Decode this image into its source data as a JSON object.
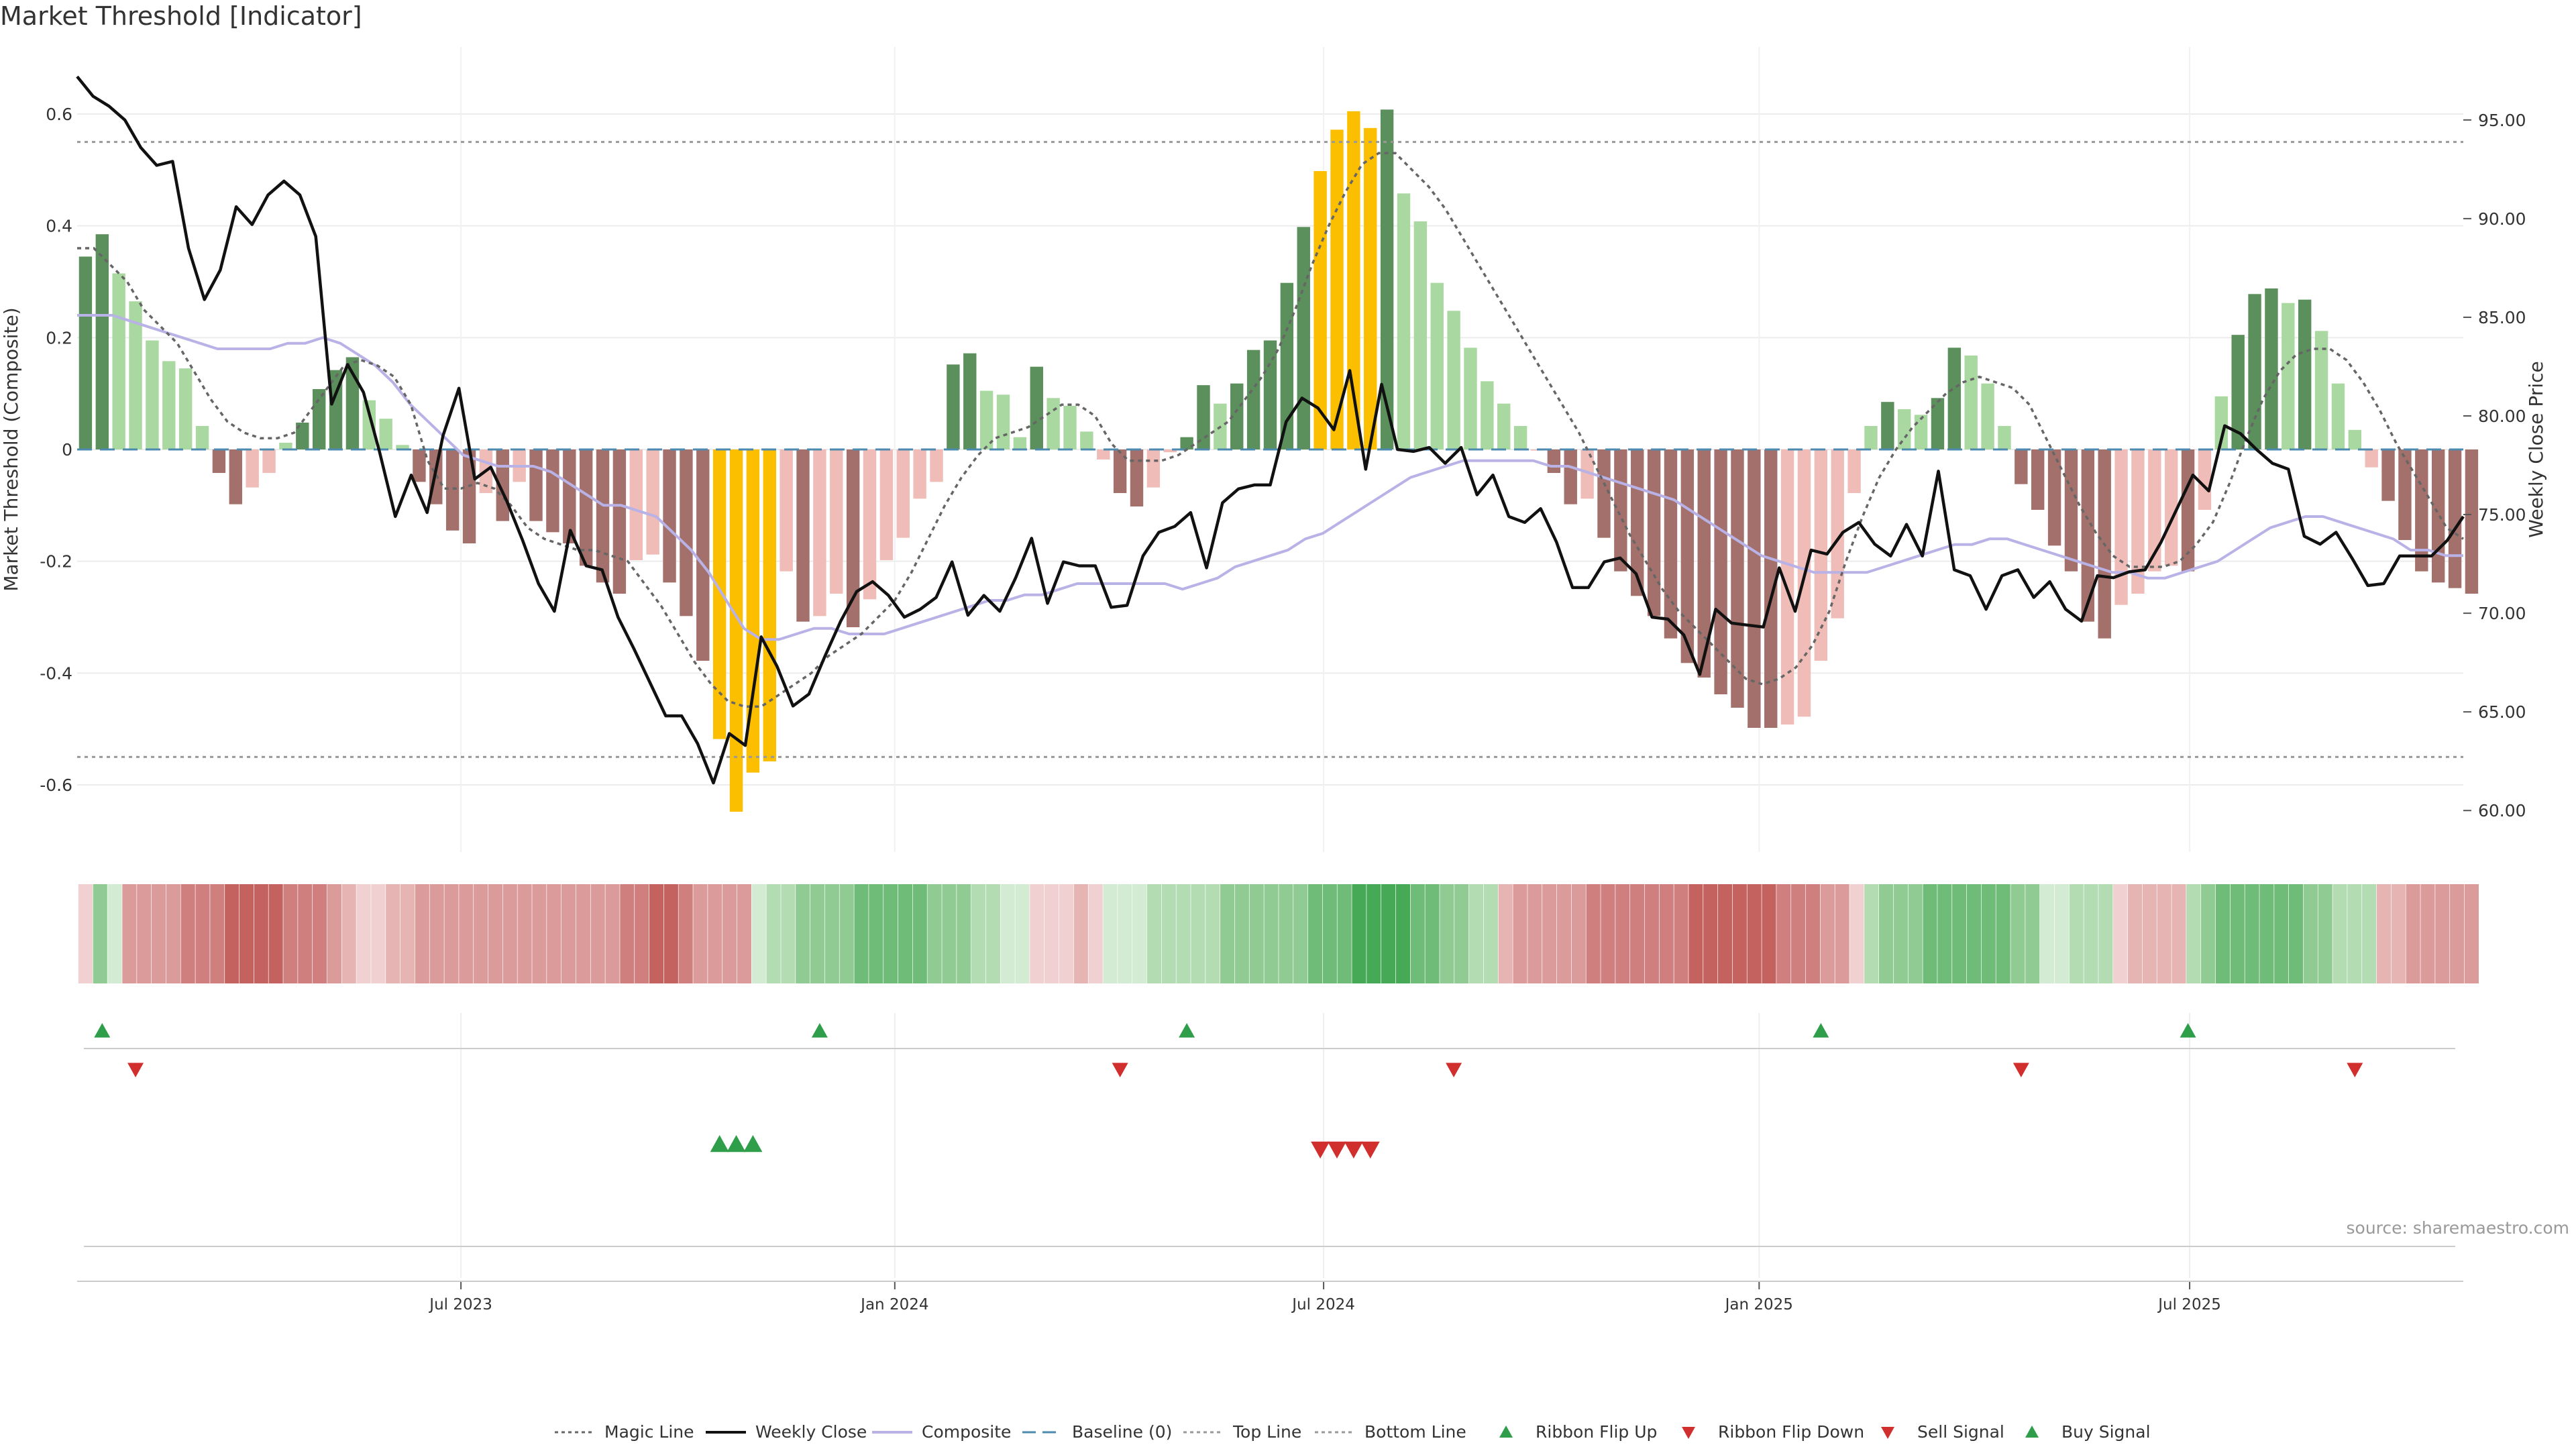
{
  "title": "Market Threshold [Indicator]",
  "source_note": "source: sharemaestro.com",
  "colors": {
    "strong_green": "#5b8f5b",
    "light_green": "#a9d8a0",
    "strong_red": "#a4706b",
    "light_red": "#efbcb7",
    "extreme": "#fbbf00",
    "magic_line": "#666666",
    "weekly_close": "#111111",
    "composite": "#b8b2e6",
    "baseline": "#4d8ab0",
    "threshold_lines": "#999999",
    "flip_up": "#2e9e4a",
    "flip_down": "#d12e2e"
  },
  "legend": [
    {
      "key": "magic",
      "label": "Magic Line"
    },
    {
      "key": "close",
      "label": "Weekly Close"
    },
    {
      "key": "composite",
      "label": "Composite"
    },
    {
      "key": "baseline",
      "label": "Baseline (0)"
    },
    {
      "key": "top",
      "label": "Top Line"
    },
    {
      "key": "bottom",
      "label": "Bottom Line"
    },
    {
      "key": "flipup",
      "label": "Ribbon Flip Up"
    },
    {
      "key": "flipdown",
      "label": "Ribbon Flip Down"
    },
    {
      "key": "sell",
      "label": "Sell Signal"
    },
    {
      "key": "buy",
      "label": "Buy Signal"
    }
  ],
  "chart_data": {
    "type": "bar",
    "y_left": {
      "label": "Market Threshold (Composite)",
      "ylim": [
        -0.72,
        0.72
      ],
      "ticks": [
        "0.6",
        "0.4",
        "0.2",
        "0",
        "-0.2",
        "-0.4",
        "-0.6"
      ],
      "tick_values": [
        0.6,
        0.4,
        0.2,
        0,
        -0.2,
        -0.4,
        -0.6
      ]
    },
    "y_right": {
      "label": "Weekly Close Price",
      "ylim": [
        57.9,
        98.7
      ],
      "ticks": [
        "95.00",
        "90.00",
        "85.00",
        "80.00",
        "75.00",
        "70.00",
        "65.00",
        "60.00"
      ],
      "tick_values": [
        95,
        90,
        85,
        80,
        75,
        70,
        65,
        60
      ]
    },
    "x_ticks": [
      {
        "label": "Jul 2023",
        "week": 22.5
      },
      {
        "label": "Jan 2024",
        "week": 48.5
      },
      {
        "label": "Jul 2024",
        "week": 74.2
      },
      {
        "label": "Jan 2025",
        "week": 100.3
      },
      {
        "label": "Jul 2025",
        "week": 126.1
      }
    ],
    "x_range": [
      -0.5,
      142.5
    ],
    "top_line": 0.55,
    "bottom_line": -0.55,
    "baseline": 0,
    "composite_bars": [
      0.345,
      0.385,
      0.315,
      0.265,
      0.195,
      0.158,
      0.145,
      0.042,
      -0.042,
      -0.098,
      -0.068,
      -0.042,
      0.012,
      0.048,
      0.108,
      0.142,
      0.165,
      0.088,
      0.055,
      0.008,
      -0.058,
      -0.098,
      -0.145,
      -0.168,
      -0.078,
      -0.128,
      -0.058,
      -0.128,
      -0.148,
      -0.168,
      -0.208,
      -0.238,
      -0.258,
      -0.198,
      -0.188,
      -0.238,
      -0.298,
      -0.378,
      -0.518,
      -0.648,
      -0.578,
      -0.558,
      -0.218,
      -0.308,
      -0.298,
      -0.258,
      -0.318,
      -0.268,
      -0.198,
      -0.158,
      -0.088,
      -0.058,
      0.152,
      0.172,
      0.105,
      0.098,
      0.022,
      0.148,
      0.092,
      0.078,
      0.032,
      -0.018,
      -0.078,
      -0.102,
      -0.068,
      -0.005,
      0.022,
      0.115,
      0.082,
      0.118,
      0.178,
      0.195,
      0.298,
      0.398,
      0.498,
      0.572,
      0.605,
      0.575,
      0.608,
      0.458,
      0.408,
      0.298,
      0.248,
      0.182,
      0.122,
      0.082,
      0.042,
      -0.002,
      -0.042,
      -0.098,
      -0.088,
      -0.158,
      -0.218,
      -0.262,
      -0.298,
      -0.338,
      -0.382,
      -0.408,
      -0.438,
      -0.462,
      -0.498,
      -0.498,
      -0.492,
      -0.478,
      -0.378,
      -0.302,
      -0.078,
      0.042,
      0.085,
      0.072,
      0.062,
      0.092,
      0.182,
      0.168,
      0.118,
      0.042,
      -0.062,
      -0.108,
      -0.172,
      -0.218,
      -0.308,
      -0.338,
      -0.278,
      -0.258,
      -0.218,
      -0.208,
      -0.218,
      -0.108,
      0.095,
      0.205,
      0.278,
      0.288,
      0.262,
      0.268,
      0.212,
      0.118,
      0.035,
      -0.032,
      -0.092,
      -0.162,
      -0.218,
      -0.238,
      -0.248,
      -0.258
    ],
    "extreme_weeks": [
      38,
      39,
      40,
      41,
      74,
      75,
      76,
      77
    ],
    "weekly_close": [
      97.2,
      96.2,
      95.7,
      95.0,
      93.6,
      92.7,
      92.9,
      88.5,
      85.9,
      87.4,
      90.6,
      89.7,
      91.2,
      91.9,
      91.2,
      89.1,
      80.6,
      82.6,
      81.2,
      78.2,
      74.9,
      77.0,
      75.1,
      79.0,
      81.4,
      76.8,
      77.4,
      75.7,
      73.7,
      71.5,
      70.1,
      74.2,
      72.4,
      72.2,
      69.8,
      68.2,
      66.5,
      64.8,
      64.8,
      63.4,
      61.4,
      63.9,
      63.3,
      68.8,
      67.3,
      65.3,
      65.9,
      67.8,
      69.6,
      71.1,
      71.6,
      70.9,
      69.8,
      70.2,
      70.8,
      72.6,
      69.9,
      70.9,
      70.1,
      71.8,
      73.8,
      70.5,
      72.6,
      72.4,
      72.4,
      70.3,
      70.4,
      72.9,
      74.1,
      74.4,
      75.1,
      72.3,
      75.6,
      76.3,
      76.5,
      76.5,
      79.7,
      80.9,
      80.4,
      79.3,
      82.3,
      77.3,
      81.6,
      78.3,
      78.2,
      78.4,
      77.6,
      78.4,
      76.0,
      77.0,
      74.9,
      74.6,
      75.3,
      73.6,
      71.3,
      71.3,
      72.6,
      72.8,
      72.0,
      69.8,
      69.7,
      68.9,
      66.9,
      70.2,
      69.5,
      69.4,
      69.3,
      72.3,
      70.1,
      73.2,
      73.0,
      74.1,
      74.6,
      73.5,
      72.9,
      74.5,
      72.9,
      77.2,
      72.2,
      71.9,
      70.2,
      71.9,
      72.2,
      70.8,
      71.6,
      70.2,
      69.6,
      71.9,
      71.8,
      72.1,
      72.2,
      73.6,
      75.3,
      77.0,
      76.2,
      79.5,
      79.1,
      78.3,
      77.6,
      77.3,
      73.9,
      73.5,
      74.1,
      72.8,
      71.4,
      71.5,
      72.9,
      72.9,
      72.9,
      73.7,
      74.9
    ],
    "magic_line": [
      0.36,
      0.36,
      0.33,
      0.3,
      0.25,
      0.22,
      0.19,
      0.14,
      0.09,
      0.05,
      0.03,
      0.02,
      0.02,
      0.03,
      0.07,
      0.11,
      0.15,
      0.16,
      0.15,
      0.13,
      0.08,
      -0.02,
      -0.07,
      -0.07,
      -0.06,
      -0.07,
      -0.1,
      -0.14,
      -0.16,
      -0.17,
      -0.18,
      -0.18,
      -0.19,
      -0.2,
      -0.24,
      -0.28,
      -0.33,
      -0.38,
      -0.42,
      -0.45,
      -0.46,
      -0.46,
      -0.44,
      -0.42,
      -0.4,
      -0.37,
      -0.35,
      -0.33,
      -0.3,
      -0.27,
      -0.22,
      -0.16,
      -0.1,
      -0.05,
      -0.01,
      0.02,
      0.03,
      0.04,
      0.06,
      0.08,
      0.08,
      0.06,
      0.01,
      -0.02,
      -0.02,
      -0.02,
      -0.01,
      0.01,
      0.03,
      0.05,
      0.09,
      0.13,
      0.18,
      0.25,
      0.33,
      0.4,
      0.46,
      0.51,
      0.53,
      0.53,
      0.5,
      0.47,
      0.43,
      0.38,
      0.33,
      0.28,
      0.23,
      0.18,
      0.13,
      0.08,
      0.03,
      -0.03,
      -0.09,
      -0.15,
      -0.2,
      -0.25,
      -0.29,
      -0.32,
      -0.35,
      -0.38,
      -0.41,
      -0.42,
      -0.41,
      -0.39,
      -0.35,
      -0.29,
      -0.2,
      -0.12,
      -0.05,
      0.0,
      0.04,
      0.07,
      0.1,
      0.12,
      0.13,
      0.12,
      0.11,
      0.08,
      0.02,
      -0.04,
      -0.1,
      -0.15,
      -0.19,
      -0.21,
      -0.21,
      -0.21,
      -0.2,
      -0.17,
      -0.13,
      -0.06,
      0.02,
      0.09,
      0.14,
      0.17,
      0.18,
      0.18,
      0.16,
      0.12,
      0.07,
      0.01,
      -0.04,
      -0.09,
      -0.14,
      -0.16
    ],
    "composite_line": [
      0.24,
      0.24,
      0.24,
      0.23,
      0.22,
      0.21,
      0.2,
      0.19,
      0.18,
      0.18,
      0.18,
      0.18,
      0.19,
      0.19,
      0.2,
      0.19,
      0.17,
      0.15,
      0.12,
      0.08,
      0.05,
      0.02,
      -0.01,
      -0.02,
      -0.03,
      -0.03,
      -0.03,
      -0.04,
      -0.06,
      -0.08,
      -0.1,
      -0.1,
      -0.11,
      -0.12,
      -0.15,
      -0.18,
      -0.22,
      -0.27,
      -0.32,
      -0.34,
      -0.34,
      -0.33,
      -0.32,
      -0.32,
      -0.33,
      -0.33,
      -0.33,
      -0.32,
      -0.31,
      -0.3,
      -0.29,
      -0.28,
      -0.27,
      -0.27,
      -0.26,
      -0.26,
      -0.25,
      -0.24,
      -0.24,
      -0.24,
      -0.24,
      -0.24,
      -0.24,
      -0.25,
      -0.24,
      -0.23,
      -0.21,
      -0.2,
      -0.19,
      -0.18,
      -0.16,
      -0.15,
      -0.13,
      -0.11,
      -0.09,
      -0.07,
      -0.05,
      -0.04,
      -0.03,
      -0.02,
      -0.02,
      -0.02,
      -0.02,
      -0.02,
      -0.03,
      -0.03,
      -0.04,
      -0.05,
      -0.06,
      -0.07,
      -0.08,
      -0.09,
      -0.11,
      -0.13,
      -0.15,
      -0.17,
      -0.19,
      -0.2,
      -0.21,
      -0.22,
      -0.22,
      -0.22,
      -0.22,
      -0.21,
      -0.2,
      -0.19,
      -0.18,
      -0.17,
      -0.17,
      -0.16,
      -0.16,
      -0.17,
      -0.18,
      -0.19,
      -0.2,
      -0.21,
      -0.22,
      -0.22,
      -0.23,
      -0.23,
      -0.22,
      -0.21,
      -0.2,
      -0.18,
      -0.16,
      -0.14,
      -0.13,
      -0.12,
      -0.12,
      -0.13,
      -0.14,
      -0.15,
      -0.16,
      -0.18,
      -0.18,
      -0.19,
      -0.19
    ],
    "ribbon": [
      -1,
      3,
      1,
      -3,
      -3,
      -3,
      -3,
      -4,
      -4,
      -4,
      -5,
      -5,
      -5,
      -5,
      -4,
      -4,
      -4,
      -3,
      -2,
      -1,
      -1,
      -2,
      -2,
      -3,
      -3,
      -3,
      -3,
      -3,
      -3,
      -3,
      -3,
      -3,
      -3,
      -3,
      -3,
      -3,
      -3,
      -4,
      -4,
      -5,
      -5,
      -4,
      -3,
      -3,
      -3,
      -3,
      1,
      2,
      2,
      3,
      3,
      3,
      3,
      4,
      4,
      4,
      4,
      4,
      3,
      3,
      3,
      2,
      2,
      1,
      1,
      -1,
      -1,
      -1,
      -2,
      -1,
      1,
      1,
      1,
      2,
      2,
      2,
      2,
      2,
      3,
      3,
      3,
      3,
      3,
      3,
      4,
      4,
      4,
      5,
      5,
      5,
      5,
      4,
      4,
      3,
      3,
      2,
      2,
      -2,
      -3,
      -3,
      -3,
      -3,
      -3,
      -4,
      -4,
      -4,
      -4,
      -4,
      -4,
      -4,
      -5,
      -5,
      -5,
      -5,
      -5,
      -5,
      -4,
      -4,
      -4,
      -3,
      -3,
      -1,
      2,
      3,
      3,
      3,
      4,
      4,
      4,
      4,
      4,
      4,
      3,
      3,
      1,
      1,
      2,
      2,
      2,
      -1,
      -2,
      -2,
      -2,
      -2,
      2,
      3,
      4,
      4,
      4,
      4,
      4,
      4,
      3,
      3,
      2,
      2,
      2,
      -2,
      -2,
      -3,
      -3,
      -3,
      -3,
      -3
    ],
    "flip_up_weeks": [
      1,
      44,
      66,
      104,
      126
    ],
    "flip_down_weeks": [
      3,
      62,
      82,
      116,
      136
    ],
    "buy_signal_weeks": [
      38,
      39,
      40
    ],
    "sell_signal_weeks": [
      74,
      75,
      76,
      77
    ]
  }
}
